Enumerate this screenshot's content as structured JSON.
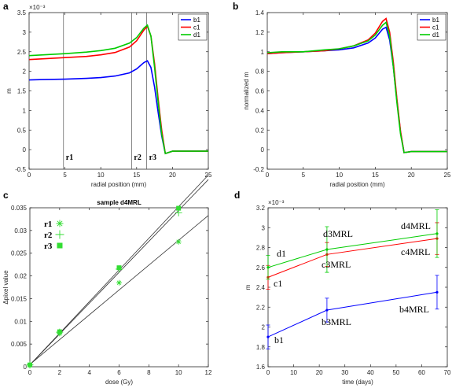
{
  "colors": {
    "b1": "#0000ff",
    "c1": "#ff0000",
    "d1": "#00cc00",
    "grid": "#000000",
    "marker_green": "#33dd33"
  },
  "chart_data": [
    {
      "panel": "a",
      "type": "line",
      "xlabel": "radial position (mm)",
      "ylabel": "m",
      "exponent": "×10⁻³",
      "xlim": [
        0,
        25
      ],
      "ylim": [
        -0.0005,
        0.0035
      ],
      "xticks": [
        "0",
        "5",
        "10",
        "15",
        "20",
        "25"
      ],
      "yticks": [
        "-0.5",
        "0",
        "0.5",
        "1",
        "1.5",
        "2",
        "2.5",
        "3",
        "3.5"
      ],
      "vlines": [
        {
          "x": 4.8,
          "label": "r1"
        },
        {
          "x": 14.3,
          "label": "r2"
        },
        {
          "x": 16.4,
          "label": "r3"
        }
      ],
      "legend": [
        "b1",
        "c1",
        "d1"
      ],
      "series": [
        {
          "name": "b1",
          "x": [
            0,
            2,
            5,
            8,
            10,
            12,
            14,
            15,
            16,
            16.5,
            17,
            17.5,
            18,
            18.5,
            19,
            20,
            22,
            25
          ],
          "y": [
            0.00178,
            0.00179,
            0.0018,
            0.00182,
            0.00184,
            0.00188,
            0.00196,
            0.00206,
            0.00222,
            0.00227,
            0.0021,
            0.0016,
            0.00095,
            0.00035,
            -0.0001,
            -4e-05,
            -4e-05,
            -4e-05
          ]
        },
        {
          "name": "c1",
          "x": [
            0,
            2,
            5,
            8,
            10,
            12,
            14,
            15,
            16,
            16.5,
            17,
            17.5,
            18,
            18.5,
            19,
            20,
            22,
            25
          ],
          "y": [
            0.0023,
            0.00232,
            0.00235,
            0.00238,
            0.00242,
            0.00248,
            0.00262,
            0.00278,
            0.00305,
            0.00315,
            0.0029,
            0.0022,
            0.0013,
            0.0005,
            -0.0001,
            -4e-05,
            -4e-05,
            -4e-05
          ]
        },
        {
          "name": "d1",
          "x": [
            0,
            2,
            5,
            8,
            10,
            12,
            14,
            15,
            16,
            16.5,
            17,
            17.5,
            18,
            18.5,
            19,
            20,
            22,
            25
          ],
          "y": [
            0.0024,
            0.00242,
            0.00245,
            0.00249,
            0.00253,
            0.00259,
            0.00272,
            0.00286,
            0.0031,
            0.00318,
            0.0029,
            0.0021,
            0.0012,
            0.0004,
            -0.0001,
            -4e-05,
            -4e-05,
            -4e-05
          ]
        }
      ]
    },
    {
      "panel": "b",
      "type": "line",
      "xlabel": "radial position (mm)",
      "ylabel": "normalized m",
      "xlim": [
        0,
        25
      ],
      "ylim": [
        -0.2,
        1.4
      ],
      "xticks": [
        "0",
        "5",
        "10",
        "15",
        "20",
        "25"
      ],
      "yticks": [
        "-0.2",
        "0",
        "0.2",
        "0.4",
        "0.6",
        "0.8",
        "1",
        "1.2",
        "1.4"
      ],
      "legend": [
        "b1",
        "c1",
        "d1"
      ],
      "series": [
        {
          "name": "b1",
          "x": [
            0,
            2,
            5,
            8,
            10,
            12,
            14,
            15,
            16,
            16.5,
            17,
            17.5,
            18,
            18.5,
            19,
            20,
            22,
            25
          ],
          "y": [
            0.98,
            0.99,
            1.0,
            1.01,
            1.02,
            1.04,
            1.09,
            1.14,
            1.23,
            1.25,
            1.12,
            0.85,
            0.5,
            0.18,
            -0.03,
            -0.02,
            -0.02,
            -0.02
          ]
        },
        {
          "name": "c1",
          "x": [
            0,
            2,
            5,
            8,
            10,
            12,
            14,
            15,
            16,
            16.5,
            17,
            17.5,
            18,
            18.5,
            19,
            20,
            22,
            25
          ],
          "y": [
            0.98,
            0.99,
            1.0,
            1.01,
            1.03,
            1.06,
            1.12,
            1.19,
            1.31,
            1.34,
            1.2,
            0.9,
            0.52,
            0.19,
            -0.03,
            -0.02,
            -0.02,
            -0.02
          ]
        },
        {
          "name": "d1",
          "x": [
            0,
            2,
            5,
            8,
            10,
            12,
            14,
            15,
            16,
            16.5,
            17,
            17.5,
            18,
            18.5,
            19,
            20,
            22,
            25
          ],
          "y": [
            0.99,
            1.0,
            1.0,
            1.02,
            1.03,
            1.06,
            1.11,
            1.17,
            1.27,
            1.3,
            1.16,
            0.85,
            0.48,
            0.16,
            -0.03,
            -0.02,
            -0.02,
            -0.02
          ]
        }
      ]
    },
    {
      "panel": "c",
      "type": "scatter",
      "title": "sample d4MRL",
      "xlabel": "dose (Gy)",
      "ylabel": "Δpixel value",
      "xlim": [
        0,
        12
      ],
      "ylim": [
        0,
        0.035
      ],
      "xticks": [
        "0",
        "2",
        "4",
        "6",
        "8",
        "10",
        "12"
      ],
      "yticks": [
        "0",
        "0.005",
        "0.01",
        "0.015",
        "0.02",
        "0.025",
        "0.03",
        "0.035"
      ],
      "legend": [
        "r1",
        "r2",
        "r3"
      ],
      "series": [
        {
          "name": "r1",
          "marker": "asterisk",
          "x": [
            0,
            2,
            6,
            10
          ],
          "y": [
            0.0004,
            0.0073,
            0.0185,
            0.0275
          ]
        },
        {
          "name": "r2",
          "marker": "plus",
          "x": [
            0,
            2,
            6,
            10
          ],
          "y": [
            0.0004,
            0.0076,
            0.0215,
            0.0339
          ]
        },
        {
          "name": "r3",
          "marker": "square",
          "x": [
            0,
            2,
            6,
            10
          ],
          "y": [
            0.0004,
            0.0077,
            0.0218,
            0.0349
          ]
        }
      ],
      "fits": [
        {
          "x": [
            0,
            12
          ],
          "y": [
            0.0005,
            0.0333
          ]
        },
        {
          "x": [
            0,
            12
          ],
          "y": [
            0.0004,
            0.0412
          ]
        },
        {
          "x": [
            0,
            12
          ],
          "y": [
            0.0004,
            0.0422
          ]
        }
      ]
    },
    {
      "panel": "d",
      "type": "line",
      "xlabel": "time (days)",
      "ylabel": "m",
      "exponent": "×10⁻³",
      "xlim": [
        0,
        70
      ],
      "ylim": [
        0.0016,
        0.0032
      ],
      "xticks": [
        "0",
        "10",
        "20",
        "30",
        "40",
        "50",
        "60",
        "70"
      ],
      "yticks": [
        "1.6",
        "1.8",
        "2",
        "2.2",
        "2.4",
        "2.6",
        "2.8",
        "3",
        "3.2"
      ],
      "series": [
        {
          "name": "b1",
          "x": [
            0,
            23,
            66
          ],
          "y": [
            0.0019,
            0.00217,
            0.00235
          ],
          "err": [
            0.00012,
            0.00012,
            0.00017
          ]
        },
        {
          "name": "c1",
          "x": [
            0,
            23,
            66
          ],
          "y": [
            0.0025,
            0.00273,
            0.00289
          ],
          "err": [
            0.00012,
            0.00012,
            0.00016
          ]
        },
        {
          "name": "d1",
          "x": [
            0,
            23,
            66
          ],
          "y": [
            0.0026,
            0.00278,
            0.00294
          ],
          "err": [
            0.00012,
            0.00023,
            0.00024
          ]
        }
      ],
      "annotations": [
        "d1",
        "c1",
        "b1",
        "d3MRL",
        "c3MRL",
        "b3MRL",
        "d4MRL",
        "c4MRL",
        "b4MRL"
      ]
    }
  ]
}
